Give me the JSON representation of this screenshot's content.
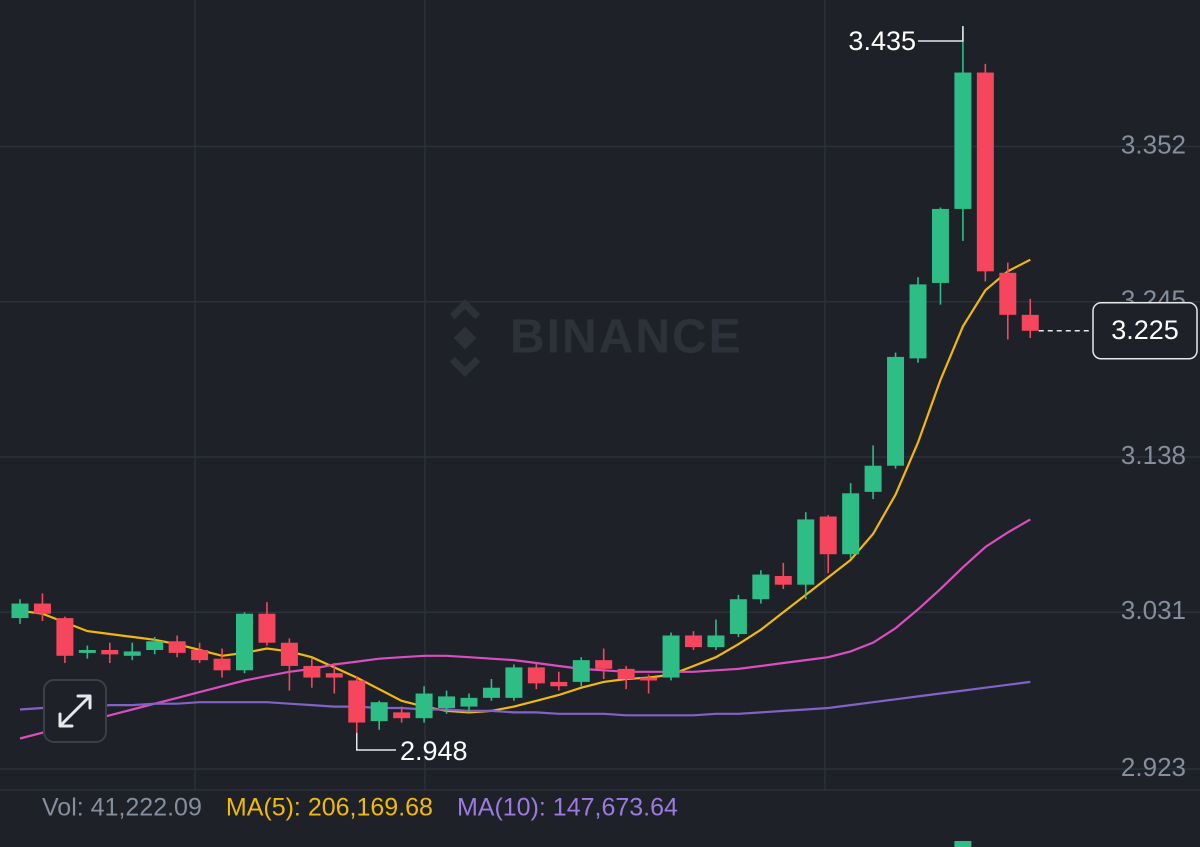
{
  "chart_data": {
    "type": "candlestick",
    "watermark": "BINANCE",
    "up_color": "#2ebd85",
    "down_color": "#f6465d",
    "ylim": [
      2.9085,
      3.453
    ],
    "yticks": [
      3.352,
      3.245,
      3.138,
      3.031,
      2.923
    ],
    "grid": true,
    "open": [
      3.027,
      3.037,
      3.027,
      3.003,
      3.005,
      3.001,
      3.005,
      3.011,
      3.005,
      2.999,
      2.991,
      3.03,
      3.01,
      2.994,
      2.989,
      2.984,
      2.956,
      2.962,
      2.958,
      2.965,
      2.966,
      2.972,
      2.972,
      2.993,
      2.983,
      2.983,
      2.998,
      2.992,
      2.986,
      2.986,
      3.015,
      3.007,
      3.016,
      3.04,
      3.056,
      3.05,
      3.097,
      3.071,
      3.114,
      3.132,
      3.206,
      3.258,
      3.309,
      3.403,
      3.265,
      3.236
    ],
    "high": [
      3.04,
      3.044,
      3.028,
      3.008,
      3.01,
      3.01,
      3.014,
      3.015,
      3.01,
      3.006,
      3.031,
      3.038,
      3.013,
      2.999,
      2.996,
      2.987,
      2.97,
      2.966,
      2.98,
      2.977,
      2.975,
      2.985,
      2.995,
      2.996,
      2.99,
      3.0,
      3.006,
      2.994,
      2.988,
      3.017,
      3.018,
      3.026,
      3.043,
      3.06,
      3.065,
      3.1,
      3.098,
      3.12,
      3.146,
      3.21,
      3.262,
      3.31,
      3.435,
      3.409,
      3.272,
      3.247
    ],
    "low": [
      3.023,
      3.025,
      2.996,
      2.999,
      2.996,
      2.998,
      3.002,
      3.0,
      2.996,
      2.986,
      2.989,
      3.008,
      2.977,
      2.979,
      2.975,
      2.948,
      2.95,
      2.955,
      2.955,
      2.961,
      2.962,
      2.97,
      2.97,
      2.978,
      2.977,
      2.98,
      2.985,
      2.978,
      2.975,
      2.984,
      3.005,
      3.005,
      3.014,
      3.037,
      3.047,
      3.04,
      3.058,
      3.068,
      3.109,
      3.13,
      3.203,
      3.243,
      3.287,
      3.259,
      3.219,
      3.22
    ],
    "close": [
      3.037,
      3.03,
      3.001,
      3.005,
      3.002,
      3.004,
      3.011,
      3.003,
      2.998,
      2.991,
      3.03,
      3.01,
      2.994,
      2.986,
      2.986,
      2.955,
      2.969,
      2.958,
      2.975,
      2.973,
      2.972,
      2.979,
      2.993,
      2.982,
      2.98,
      2.998,
      2.992,
      2.985,
      2.984,
      3.015,
      3.007,
      3.015,
      3.04,
      3.057,
      3.05,
      3.095,
      3.071,
      3.113,
      3.132,
      3.207,
      3.257,
      3.309,
      3.403,
      3.266,
      3.236,
      3.225
    ],
    "high_marker": 42,
    "low_marker": 15,
    "lines": [
      {
        "color": "#f0b90b",
        "values": [
          3.032,
          3.03,
          3.024,
          3.018,
          3.016,
          3.014,
          3.012,
          3.009,
          3.005,
          3.001,
          3.003,
          3.006,
          3.004,
          3.0,
          2.993,
          2.986,
          2.978,
          2.97,
          2.966,
          2.963,
          2.962,
          2.963,
          2.966,
          2.97,
          2.974,
          2.979,
          2.983,
          2.985,
          2.986,
          2.988,
          2.994,
          3.0,
          3.009,
          3.019,
          3.031,
          3.043,
          3.055,
          3.067,
          3.085,
          3.112,
          3.148,
          3.191,
          3.228,
          3.253,
          3.266,
          3.274
        ]
      },
      {
        "color": "#d94fbf",
        "values": [
          2.944,
          2.948,
          2.952,
          2.956,
          2.96,
          2.964,
          2.968,
          2.972,
          2.976,
          2.98,
          2.984,
          2.987,
          2.99,
          2.992,
          2.995,
          2.997,
          2.999,
          3.0,
          3.001,
          3.001,
          3.0,
          2.999,
          2.998,
          2.996,
          2.994,
          2.992,
          2.991,
          2.99,
          2.99,
          2.99,
          2.99,
          2.991,
          2.992,
          2.994,
          2.996,
          2.998,
          3.0,
          3.004,
          3.01,
          3.02,
          3.033,
          3.047,
          3.062,
          3.076,
          3.086,
          3.095
        ]
      },
      {
        "color": "#8262c6",
        "values": [
          2.964,
          2.965,
          2.966,
          2.966,
          2.967,
          2.967,
          2.968,
          2.968,
          2.969,
          2.969,
          2.969,
          2.969,
          2.968,
          2.967,
          2.966,
          2.966,
          2.965,
          2.965,
          2.964,
          2.964,
          2.963,
          2.963,
          2.962,
          2.962,
          2.961,
          2.961,
          2.961,
          2.96,
          2.96,
          2.96,
          2.96,
          2.961,
          2.961,
          2.962,
          2.963,
          2.964,
          2.965,
          2.967,
          2.969,
          2.971,
          2.973,
          2.975,
          2.977,
          2.979,
          2.981,
          2.983
        ]
      }
    ],
    "volume_legend": [
      {
        "text": "Vol: 41,222.09",
        "color": "#848e9c"
      },
      {
        "text": "MA(5): 206,169.68",
        "color": "#f0b90b"
      },
      {
        "text": "MA(10): 147,673.64",
        "color": "#9b7be0"
      }
    ]
  }
}
